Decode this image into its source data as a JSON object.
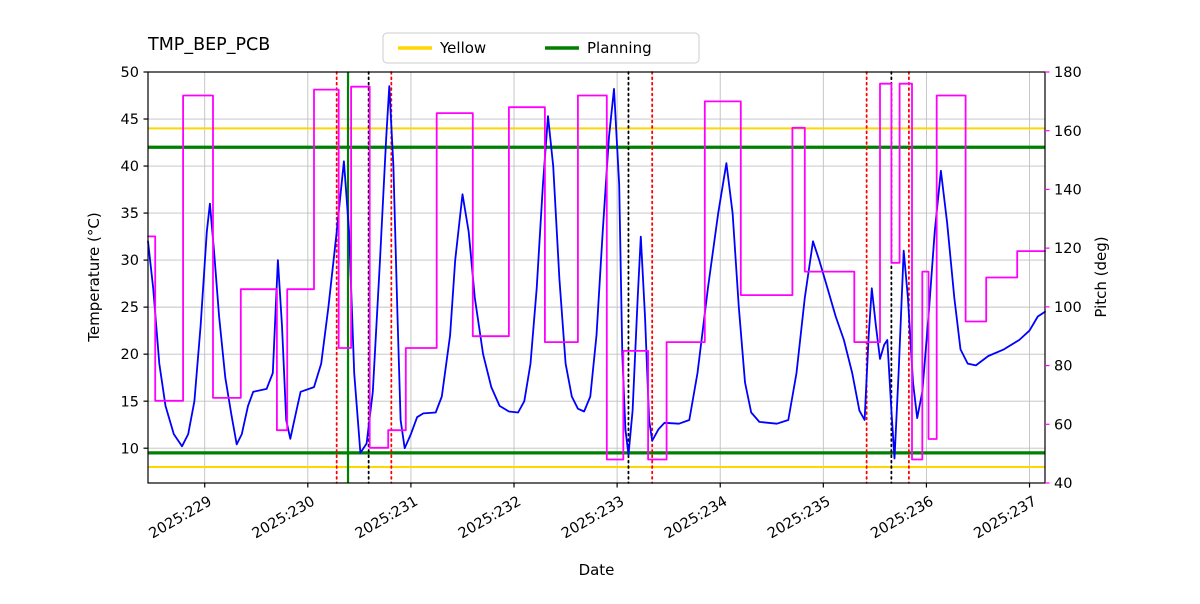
{
  "title": "TMP_BEP_PCB",
  "legend": {
    "items": [
      {
        "label": "Yellow",
        "color": "#FFD700"
      },
      {
        "label": "Planning",
        "color": "#008000"
      }
    ]
  },
  "chart_data": {
    "type": "line",
    "title": "TMP_BEP_PCB",
    "xlabel": "Date",
    "ylabel_left": "Temperature (°C)",
    "ylabel_right": "Pitch (deg)",
    "right_axis_color": "#FF00FF",
    "grid": true,
    "legend_position": "top-center",
    "xlim": [
      228.45,
      237.15
    ],
    "ylim_left": [
      6.3,
      50
    ],
    "ylim_right": [
      40,
      180
    ],
    "x_ticks": [
      {
        "value": 229,
        "label": "2025:229"
      },
      {
        "value": 230,
        "label": "2025:230"
      },
      {
        "value": 231,
        "label": "2025:231"
      },
      {
        "value": 232,
        "label": "2025:232"
      },
      {
        "value": 233,
        "label": "2025:233"
      },
      {
        "value": 234,
        "label": "2025:234"
      },
      {
        "value": 235,
        "label": "2025:235"
      },
      {
        "value": 236,
        "label": "2025:236"
      },
      {
        "value": 237,
        "label": "2025:237"
      }
    ],
    "yticks_left": [
      10,
      15,
      20,
      25,
      30,
      35,
      40,
      45,
      50
    ],
    "yticks_right": [
      40,
      60,
      80,
      100,
      120,
      140,
      160,
      180
    ],
    "hlines": [
      {
        "name": "yellow-limit-high",
        "y": 44,
        "color": "#FFD700",
        "width": 2
      },
      {
        "name": "yellow-limit-low",
        "y": 8,
        "color": "#FFD700",
        "width": 2
      },
      {
        "name": "planning-limit-high",
        "y": 42,
        "color": "#008000",
        "width": 3.2
      },
      {
        "name": "planning-limit-low",
        "y": 9.5,
        "color": "#008000",
        "width": 3.2
      }
    ],
    "vlines": [
      {
        "name": "event-red-1",
        "x": 230.28,
        "color": "#FF0000",
        "style": "dotted",
        "width": 1.8
      },
      {
        "name": "event-green-solid",
        "x": 230.39,
        "color": "#008000",
        "style": "solid",
        "width": 2.2
      },
      {
        "name": "event-black-1",
        "x": 230.59,
        "color": "#000000",
        "style": "dotted",
        "width": 1.8
      },
      {
        "name": "event-red-2",
        "x": 230.81,
        "color": "#FF0000",
        "style": "dotted",
        "width": 1.8
      },
      {
        "name": "event-black-2",
        "x": 233.11,
        "color": "#000000",
        "style": "dotted",
        "width": 1.8
      },
      {
        "name": "event-red-3",
        "x": 233.34,
        "color": "#FF0000",
        "style": "dotted",
        "width": 1.8
      },
      {
        "name": "event-red-4",
        "x": 235.42,
        "color": "#FF0000",
        "style": "dotted",
        "width": 1.8
      },
      {
        "name": "event-black-3",
        "x": 235.66,
        "color": "#000000",
        "style": "dotted",
        "width": 1.8
      },
      {
        "name": "event-red-5",
        "x": 235.83,
        "color": "#FF0000",
        "style": "dotted",
        "width": 1.8
      }
    ],
    "series": [
      {
        "name": "temperature",
        "label": "TMP_BEP_PCB",
        "axis": "left",
        "color": "#0000FF",
        "mode": "line",
        "points": [
          [
            228.45,
            32
          ],
          [
            228.5,
            27
          ],
          [
            228.56,
            19
          ],
          [
            228.62,
            14.5
          ],
          [
            228.7,
            11.5
          ],
          [
            228.78,
            10.2
          ],
          [
            228.84,
            11.5
          ],
          [
            228.9,
            15
          ],
          [
            228.96,
            23
          ],
          [
            229.02,
            33
          ],
          [
            229.05,
            36
          ],
          [
            229.09,
            31
          ],
          [
            229.14,
            24
          ],
          [
            229.2,
            17.5
          ],
          [
            229.26,
            13.5
          ],
          [
            229.31,
            10.4
          ],
          [
            229.36,
            11.5
          ],
          [
            229.42,
            14.5
          ],
          [
            229.47,
            16.0
          ],
          [
            229.6,
            16.3
          ],
          [
            229.66,
            18
          ],
          [
            229.71,
            30
          ],
          [
            229.75,
            23
          ],
          [
            229.79,
            13
          ],
          [
            229.83,
            11
          ],
          [
            229.88,
            13.5
          ],
          [
            229.93,
            16.0
          ],
          [
            230.06,
            16.5
          ],
          [
            230.13,
            19
          ],
          [
            230.2,
            25
          ],
          [
            230.28,
            33
          ],
          [
            230.35,
            40.5
          ],
          [
            230.4,
            33
          ],
          [
            230.45,
            18
          ],
          [
            230.51,
            9.5
          ],
          [
            230.57,
            10.5
          ],
          [
            230.63,
            16
          ],
          [
            230.7,
            30
          ],
          [
            230.76,
            43
          ],
          [
            230.79,
            48.5
          ],
          [
            230.83,
            40
          ],
          [
            230.87,
            24
          ],
          [
            230.9,
            13
          ],
          [
            230.94,
            10.0
          ],
          [
            231.0,
            11.5
          ],
          [
            231.06,
            13.3
          ],
          [
            231.12,
            13.7
          ],
          [
            231.24,
            13.8
          ],
          [
            231.3,
            15.5
          ],
          [
            231.38,
            22
          ],
          [
            231.43,
            30
          ],
          [
            231.5,
            37
          ],
          [
            231.56,
            33
          ],
          [
            231.62,
            26
          ],
          [
            231.7,
            20
          ],
          [
            231.78,
            16.5
          ],
          [
            231.86,
            14.5
          ],
          [
            231.95,
            13.9
          ],
          [
            232.04,
            13.8
          ],
          [
            232.1,
            15
          ],
          [
            232.16,
            19
          ],
          [
            232.22,
            27
          ],
          [
            232.28,
            38
          ],
          [
            232.33,
            45.3
          ],
          [
            232.38,
            40
          ],
          [
            232.44,
            28
          ],
          [
            232.5,
            19
          ],
          [
            232.56,
            15.5
          ],
          [
            232.62,
            14.2
          ],
          [
            232.68,
            13.9
          ],
          [
            232.74,
            15.5
          ],
          [
            232.8,
            22
          ],
          [
            232.86,
            33
          ],
          [
            232.92,
            43
          ],
          [
            232.97,
            48.2
          ],
          [
            233.02,
            38
          ],
          [
            233.05,
            20
          ],
          [
            233.08,
            12
          ],
          [
            233.11,
            9.3
          ],
          [
            233.15,
            14
          ],
          [
            233.2,
            26
          ],
          [
            233.23,
            32.5
          ],
          [
            233.27,
            24
          ],
          [
            233.31,
            13
          ],
          [
            233.34,
            10.8
          ],
          [
            233.4,
            12
          ],
          [
            233.46,
            12.7
          ],
          [
            233.6,
            12.6
          ],
          [
            233.7,
            13
          ],
          [
            233.78,
            18
          ],
          [
            233.88,
            27
          ],
          [
            233.98,
            35
          ],
          [
            234.06,
            40.3
          ],
          [
            234.12,
            35
          ],
          [
            234.18,
            25
          ],
          [
            234.24,
            17
          ],
          [
            234.3,
            13.8
          ],
          [
            234.38,
            12.8
          ],
          [
            234.55,
            12.6
          ],
          [
            234.66,
            13
          ],
          [
            234.74,
            18
          ],
          [
            234.82,
            26
          ],
          [
            234.9,
            32
          ],
          [
            234.96,
            30
          ],
          [
            235.04,
            27
          ],
          [
            235.12,
            24
          ],
          [
            235.2,
            21.5
          ],
          [
            235.28,
            18
          ],
          [
            235.35,
            14
          ],
          [
            235.4,
            13
          ],
          [
            235.44,
            22
          ],
          [
            235.47,
            27
          ],
          [
            235.51,
            23
          ],
          [
            235.55,
            19.5
          ],
          [
            235.59,
            21
          ],
          [
            235.62,
            21.5
          ],
          [
            235.66,
            14
          ],
          [
            235.69,
            8.9
          ],
          [
            235.73,
            18
          ],
          [
            235.78,
            31
          ],
          [
            235.82,
            26
          ],
          [
            235.87,
            17
          ],
          [
            235.91,
            13.2
          ],
          [
            235.96,
            16
          ],
          [
            236.02,
            24
          ],
          [
            236.08,
            33
          ],
          [
            236.14,
            39.5
          ],
          [
            236.2,
            34
          ],
          [
            236.27,
            26
          ],
          [
            236.33,
            20.5
          ],
          [
            236.4,
            19.0
          ],
          [
            236.48,
            18.8
          ],
          [
            236.6,
            19.8
          ],
          [
            236.75,
            20.5
          ],
          [
            236.9,
            21.5
          ],
          [
            237.0,
            22.5
          ],
          [
            237.08,
            24.0
          ],
          [
            237.15,
            24.5
          ]
        ]
      },
      {
        "name": "pitch",
        "label": "Pitch",
        "axis": "right",
        "color": "#FF00FF",
        "mode": "step",
        "points": [
          [
            228.45,
            124
          ],
          [
            228.52,
            68
          ],
          [
            228.79,
            172
          ],
          [
            229.08,
            69
          ],
          [
            229.35,
            106
          ],
          [
            229.7,
            58
          ],
          [
            229.8,
            106
          ],
          [
            230.06,
            174
          ],
          [
            230.3,
            86
          ],
          [
            230.42,
            175
          ],
          [
            230.6,
            52
          ],
          [
            230.78,
            58
          ],
          [
            230.95,
            86
          ],
          [
            231.25,
            166
          ],
          [
            231.6,
            90
          ],
          [
            231.95,
            168
          ],
          [
            232.3,
            88
          ],
          [
            232.62,
            172
          ],
          [
            232.9,
            48
          ],
          [
            233.06,
            85
          ],
          [
            233.3,
            48
          ],
          [
            233.48,
            88
          ],
          [
            233.85,
            170
          ],
          [
            234.2,
            104
          ],
          [
            234.7,
            161
          ],
          [
            234.82,
            112
          ],
          [
            235.3,
            88
          ],
          [
            235.55,
            176
          ],
          [
            235.66,
            115
          ],
          [
            235.74,
            176
          ],
          [
            235.86,
            48
          ],
          [
            235.96,
            112
          ],
          [
            236.02,
            55
          ],
          [
            236.1,
            172
          ],
          [
            236.38,
            95
          ],
          [
            236.58,
            110
          ],
          [
            236.88,
            119
          ],
          [
            237.15,
            119
          ]
        ]
      }
    ]
  }
}
